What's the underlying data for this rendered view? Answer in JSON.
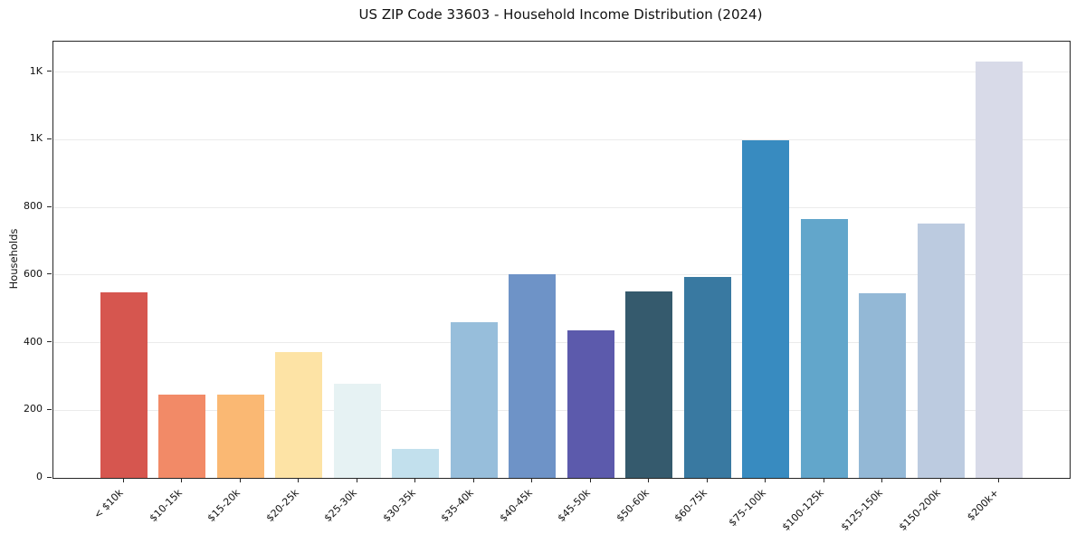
{
  "chart_data": {
    "type": "bar",
    "title": "US ZIP Code 33603 - Household Income Distribution (2024)",
    "xlabel": "",
    "ylabel": "Households",
    "categories": [
      "< $10k",
      "$10-15k",
      "$15-20k",
      "$20-25k",
      "$25-30k",
      "$30-35k",
      "$35-40k",
      "$40-45k",
      "$45-50k",
      "$50-60k",
      "$60-75k",
      "$75-100k",
      "$100-125k",
      "$125-150k",
      "$150-200k",
      "$200k+"
    ],
    "values": [
      548,
      245,
      246,
      373,
      279,
      86,
      460,
      603,
      437,
      552,
      594,
      997,
      765,
      547,
      752,
      1232
    ],
    "bar_colors": [
      "#d6564f",
      "#f28a67",
      "#fab873",
      "#fde3a5",
      "#e6f2f3",
      "#c2e0ed",
      "#97bedb",
      "#6e93c7",
      "#5c5aac",
      "#355a6d",
      "#3979a1",
      "#388bc0",
      "#62a6cb",
      "#93b8d6",
      "#bccbe0",
      "#d8dae8"
    ],
    "ylim": [
      0,
      1290
    ],
    "yticks": [
      {
        "value": 0,
        "label": "0"
      },
      {
        "value": 200,
        "label": "200"
      },
      {
        "value": 400,
        "label": "400"
      },
      {
        "value": 600,
        "label": "600"
      },
      {
        "value": 800,
        "label": "800"
      },
      {
        "value": 1000,
        "label": "1K"
      },
      {
        "value": 1200,
        "label": "1K"
      }
    ],
    "grid": "horizontal-only",
    "legend": "none",
    "colors": {
      "grid": "#ebebeb",
      "spine": "#262626",
      "text": "#111111",
      "background": "#ffffff"
    }
  }
}
